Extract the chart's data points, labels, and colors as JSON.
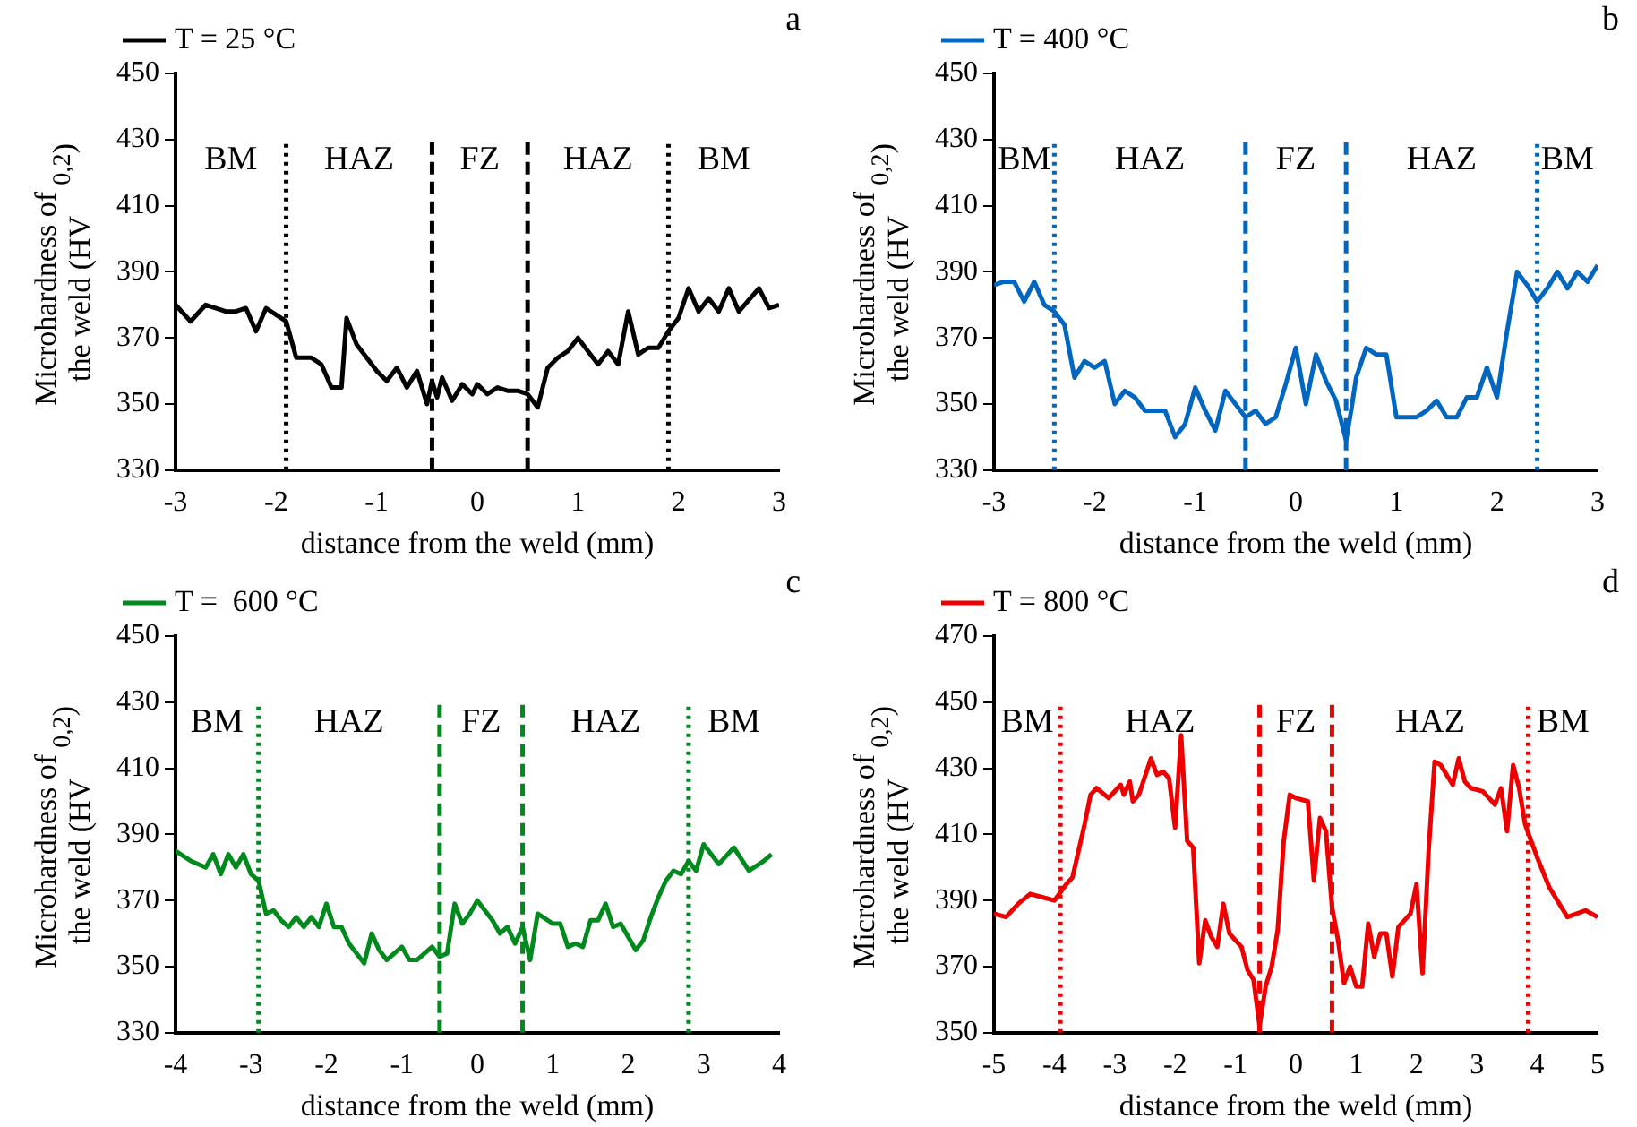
{
  "chart_data": [
    {
      "type": "line",
      "title": null,
      "xlabel": "distance from the weld (mm)",
      "ylabel": "Microhardness of the weld (HV$_{0,2}$)",
      "legend": "top left",
      "grid": false,
      "marker": "none",
      "xlim": [
        -3,
        3
      ],
      "xticks": [
        -3,
        -2,
        -1,
        0,
        1,
        2,
        3
      ],
      "ylim": [
        330,
        450
      ],
      "yticks": [
        330,
        350,
        370,
        390,
        410,
        430,
        450
      ],
      "series": [
        {
          "name": "T = 25 °C",
          "color": "#000000",
          "x": [
            -3,
            -2.85,
            -2.7,
            -2.5,
            -2.4,
            -2.3,
            -2.2,
            -2.1,
            -2.0,
            -1.9,
            -1.8,
            -1.65,
            -1.55,
            -1.45,
            -1.35,
            -1.3,
            -1.2,
            -1.1,
            -1.0,
            -0.9,
            -0.8,
            -0.7,
            -0.6,
            -0.5,
            -0.45,
            -0.4,
            -0.35,
            -0.25,
            -0.15,
            -0.05,
            0.0,
            0.1,
            0.2,
            0.3,
            0.4,
            0.5,
            0.55,
            0.6,
            0.7,
            0.8,
            0.9,
            1.0,
            1.1,
            1.2,
            1.3,
            1.4,
            1.5,
            1.6,
            1.7,
            1.8,
            1.9,
            2.0,
            2.1,
            2.2,
            2.3,
            2.4,
            2.5,
            2.6,
            2.8,
            2.9,
            3.0
          ],
          "values": [
            380,
            375,
            380,
            378,
            378,
            379,
            372,
            379,
            377,
            375,
            364,
            364,
            362,
            355,
            355,
            376,
            368,
            364,
            360,
            357,
            361,
            355,
            360,
            350,
            357,
            352,
            358,
            351,
            356,
            353,
            356,
            353,
            355,
            354,
            354,
            353,
            351,
            349,
            361,
            364,
            366,
            370,
            366,
            362,
            366,
            362,
            378,
            365,
            367,
            367,
            372,
            376,
            385,
            378,
            382,
            378,
            385,
            378,
            385,
            379,
            380
          ]
        }
      ],
      "ref_lines": [
        {
          "axis": "x",
          "value": -1.9,
          "color": "#000000",
          "line_style": "dotted"
        },
        {
          "axis": "x",
          "value": -0.45,
          "color": "#000000",
          "line_style": "dashed"
        },
        {
          "axis": "x",
          "value": 0.5,
          "color": "#000000",
          "line_style": "dashed"
        },
        {
          "axis": "x",
          "value": 1.9,
          "color": "#000000",
          "line_style": "dotted"
        }
      ],
      "annotations": [
        "a",
        "BM",
        "HAZ",
        "FZ",
        "HAZ",
        "BM"
      ]
    },
    {
      "type": "line",
      "title": null,
      "xlabel": "distance from the weld (mm)",
      "ylabel": "Microhardness of the weld (HV$_{0,2}$)",
      "legend": "top left",
      "grid": false,
      "marker": "none",
      "xlim": [
        -3,
        3
      ],
      "xticks": [
        -3,
        -2,
        -1,
        0,
        1,
        2,
        3
      ],
      "ylim": [
        330,
        450
      ],
      "yticks": [
        330,
        350,
        370,
        390,
        410,
        430,
        450
      ],
      "series": [
        {
          "name": "T = 400 °C",
          "color": "#0066c0",
          "x": [
            -3,
            -2.9,
            -2.8,
            -2.7,
            -2.6,
            -2.5,
            -2.4,
            -2.3,
            -2.2,
            -2.1,
            -2.0,
            -1.9,
            -1.8,
            -1.7,
            -1.6,
            -1.5,
            -1.3,
            -1.2,
            -1.1,
            -1.0,
            -0.9,
            -0.8,
            -0.7,
            -0.6,
            -0.5,
            -0.4,
            -0.3,
            -0.2,
            -0.1,
            0.0,
            0.1,
            0.2,
            0.3,
            0.4,
            0.45,
            0.5,
            0.55,
            0.6,
            0.7,
            0.8,
            0.9,
            1.0,
            1.2,
            1.3,
            1.4,
            1.5,
            1.6,
            1.7,
            1.8,
            1.9,
            2.0,
            2.1,
            2.2,
            2.3,
            2.4,
            2.5,
            2.6,
            2.7,
            2.8,
            2.9,
            3.0
          ],
          "values": [
            386,
            387,
            387,
            381,
            387,
            380,
            378,
            374,
            358,
            363,
            361,
            363,
            350,
            354,
            352,
            348,
            348,
            340,
            344,
            355,
            348,
            342,
            354,
            350,
            346,
            348,
            344,
            346,
            356,
            367,
            350,
            365,
            357,
            351,
            345,
            339,
            348,
            358,
            367,
            365,
            365,
            346,
            346,
            348,
            351,
            346,
            346,
            352,
            352,
            361,
            352,
            372,
            390,
            386,
            381,
            385,
            390,
            385,
            390,
            387,
            392
          ]
        }
      ],
      "ref_lines": [
        {
          "axis": "x",
          "value": -2.4,
          "color": "#0066c0",
          "line_style": "dotted"
        },
        {
          "axis": "x",
          "value": -0.5,
          "color": "#0066c0",
          "line_style": "dashed"
        },
        {
          "axis": "x",
          "value": 0.5,
          "color": "#0066c0",
          "line_style": "dashed"
        },
        {
          "axis": "x",
          "value": 2.4,
          "color": "#0066c0",
          "line_style": "dotted"
        }
      ],
      "annotations": [
        "b",
        "BM",
        "HAZ",
        "FZ",
        "HAZ",
        "BM"
      ]
    },
    {
      "type": "line",
      "title": null,
      "xlabel": "distance from the weld (mm)",
      "ylabel": "Microhardness of the weld (HV$_{0,2}$)",
      "legend": "top left",
      "grid": false,
      "marker": "none",
      "xlim": [
        -4,
        4
      ],
      "xticks": [
        -4,
        -3,
        -2,
        -1,
        0,
        1,
        2,
        3,
        4
      ],
      "ylim": [
        330,
        450
      ],
      "yticks": [
        330,
        350,
        370,
        390,
        410,
        430,
        450
      ],
      "series": [
        {
          "name": "T =  600 °C",
          "color": "#008a1e",
          "x": [
            -4,
            -3.8,
            -3.6,
            -3.5,
            -3.4,
            -3.3,
            -3.2,
            -3.1,
            -3.0,
            -2.9,
            -2.8,
            -2.7,
            -2.6,
            -2.5,
            -2.4,
            -2.3,
            -2.2,
            -2.1,
            -2.0,
            -1.9,
            -1.8,
            -1.7,
            -1.6,
            -1.5,
            -1.4,
            -1.3,
            -1.2,
            -1.1,
            -1.0,
            -0.9,
            -0.8,
            -0.6,
            -0.5,
            -0.4,
            -0.3,
            -0.2,
            -0.1,
            0.0,
            0.1,
            0.2,
            0.3,
            0.4,
            0.5,
            0.6,
            0.7,
            0.8,
            1.0,
            1.1,
            1.2,
            1.3,
            1.4,
            1.5,
            1.6,
            1.7,
            1.8,
            1.9,
            2.0,
            2.1,
            2.2,
            2.3,
            2.4,
            2.5,
            2.6,
            2.7,
            2.8,
            2.9,
            3.0,
            3.2,
            3.4,
            3.6,
            3.8,
            3.9
          ],
          "values": [
            385,
            382,
            380,
            384,
            378,
            384,
            380,
            384,
            378,
            376,
            366,
            367,
            364,
            362,
            365,
            362,
            365,
            362,
            369,
            362,
            362,
            357,
            354,
            351,
            360,
            355,
            352,
            354,
            356,
            352,
            352,
            356,
            353,
            354,
            369,
            363,
            366,
            370,
            367,
            364,
            360,
            362,
            357,
            362,
            352,
            366,
            363,
            363,
            356,
            357,
            356,
            364,
            364,
            369,
            362,
            363,
            359,
            355,
            358,
            365,
            371,
            376,
            379,
            378,
            382,
            379,
            387,
            381,
            386,
            379,
            382,
            384
          ]
        }
      ],
      "ref_lines": [
        {
          "axis": "x",
          "value": -2.9,
          "color": "#008a1e",
          "line_style": "dotted"
        },
        {
          "axis": "x",
          "value": -0.5,
          "color": "#008a1e",
          "line_style": "dashed"
        },
        {
          "axis": "x",
          "value": 0.6,
          "color": "#008a1e",
          "line_style": "dashed"
        },
        {
          "axis": "x",
          "value": 2.8,
          "color": "#008a1e",
          "line_style": "dotted"
        }
      ],
      "annotations": [
        "c",
        "BM",
        "HAZ",
        "FZ",
        "HAZ",
        "BM"
      ]
    },
    {
      "type": "line",
      "title": null,
      "xlabel": "distance from the weld (mm)",
      "ylabel": "Microhardness of the weld (HV$_{0,2}$)",
      "legend": "top left",
      "grid": false,
      "marker": "none",
      "xlim": [
        -5,
        5
      ],
      "xticks": [
        -5,
        -4,
        -3,
        -2,
        -1,
        0,
        1,
        2,
        3,
        4,
        5
      ],
      "ylim": [
        350,
        470
      ],
      "yticks": [
        350,
        370,
        390,
        410,
        430,
        450,
        470
      ],
      "series": [
        {
          "name": "T = 800 °C",
          "color": "#ee0000",
          "x": [
            -5,
            -4.8,
            -4.6,
            -4.4,
            -4.2,
            -4.0,
            -3.8,
            -3.7,
            -3.6,
            -3.5,
            -3.4,
            -3.3,
            -3.1,
            -2.9,
            -2.85,
            -2.75,
            -2.7,
            -2.6,
            -2.4,
            -2.3,
            -2.2,
            -2.1,
            -2.0,
            -1.9,
            -1.8,
            -1.7,
            -1.6,
            -1.5,
            -1.4,
            -1.3,
            -1.2,
            -1.1,
            -1.0,
            -0.9,
            -0.8,
            -0.7,
            -0.6,
            -0.5,
            -0.4,
            -0.3,
            -0.2,
            -0.1,
            0.0,
            0.2,
            0.3,
            0.4,
            0.5,
            0.6,
            0.7,
            0.8,
            0.9,
            1.0,
            1.1,
            1.2,
            1.3,
            1.4,
            1.5,
            1.6,
            1.7,
            1.8,
            1.9,
            2.0,
            2.1,
            2.2,
            2.3,
            2.4,
            2.6,
            2.7,
            2.8,
            2.9,
            3.1,
            3.3,
            3.4,
            3.5,
            3.6,
            3.7,
            3.8,
            4.0,
            4.2,
            4.4,
            4.5,
            4.8,
            5.0
          ],
          "values": [
            386,
            385,
            389,
            392,
            391,
            390,
            395,
            397,
            405,
            413,
            422,
            424,
            421,
            425,
            422,
            426,
            420,
            422,
            433,
            428,
            429,
            427,
            412,
            440,
            408,
            406,
            371,
            384,
            379,
            376,
            389,
            380,
            378,
            376,
            369,
            366,
            352,
            364,
            370,
            381,
            408,
            422,
            421,
            420,
            396,
            415,
            411,
            388,
            378,
            365,
            370,
            364,
            364,
            383,
            373,
            380,
            380,
            367,
            382,
            384,
            386,
            395,
            368,
            405,
            432,
            431,
            425,
            433,
            426,
            424,
            423,
            419,
            424,
            411,
            431,
            424,
            413,
            403,
            394,
            388,
            385,
            387,
            385
          ]
        }
      ],
      "ref_lines": [
        {
          "axis": "x",
          "value": -3.9,
          "color": "#ee0000",
          "line_style": "dotted"
        },
        {
          "axis": "x",
          "value": -0.6,
          "color": "#ee0000",
          "line_style": "dashed"
        },
        {
          "axis": "x",
          "value": 0.6,
          "color": "#ee0000",
          "line_style": "dashed"
        },
        {
          "axis": "x",
          "value": 3.85,
          "color": "#ee0000",
          "line_style": "dotted"
        }
      ],
      "annotations": [
        "d",
        "BM",
        "HAZ",
        "FZ",
        "HAZ",
        "BM"
      ]
    }
  ]
}
